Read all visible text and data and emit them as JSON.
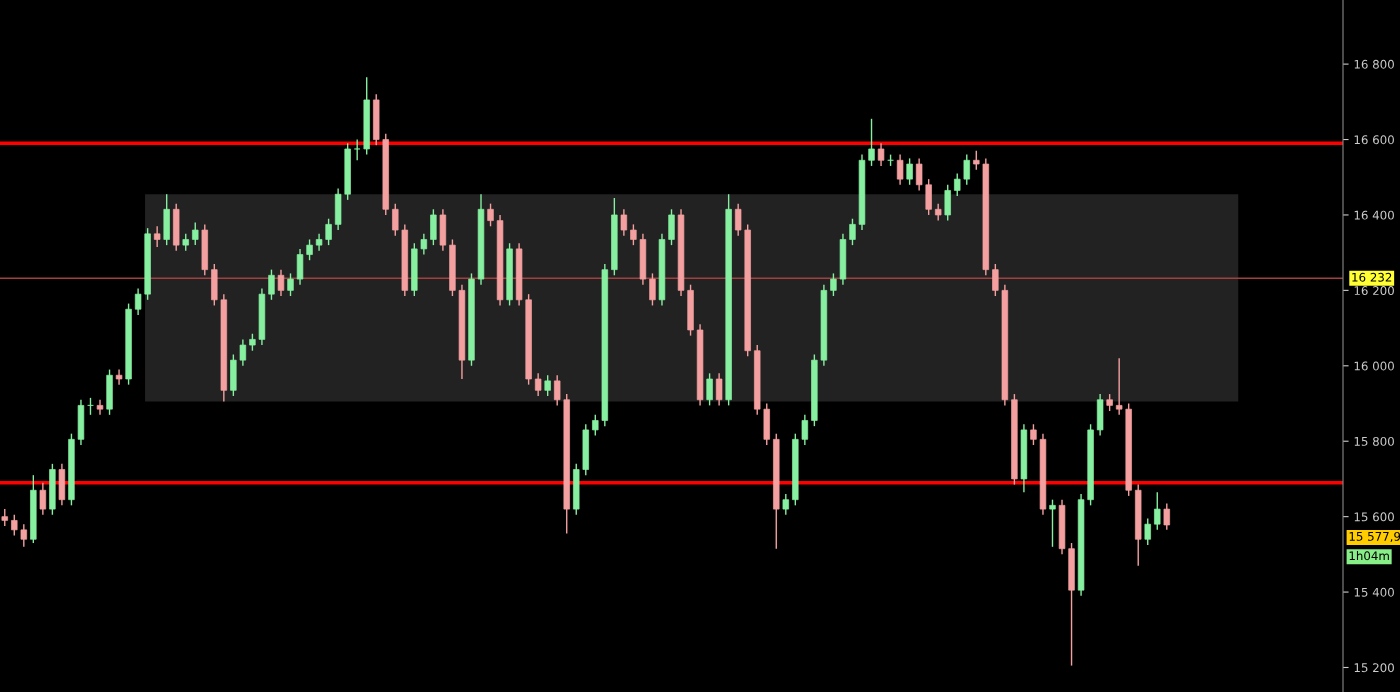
{
  "chart_data": {
    "type": "candlestick",
    "categories": [
      null,
      null,
      null,
      null,
      null,
      null,
      null,
      null,
      null,
      null,
      null,
      null,
      null,
      null,
      null,
      null,
      null,
      null,
      null,
      null,
      null,
      null,
      null,
      null,
      null,
      null,
      null,
      null,
      null,
      null,
      null,
      null,
      null,
      null,
      null,
      null,
      null,
      null,
      null,
      null,
      null,
      null,
      null,
      null,
      null,
      null,
      null,
      null,
      null,
      null,
      null,
      null,
      null,
      null,
      null,
      null,
      null,
      null,
      null,
      null,
      null,
      null,
      null,
      null,
      null,
      null,
      null,
      null,
      null,
      null,
      null,
      null,
      null,
      null,
      null,
      null,
      null,
      null,
      null,
      null,
      null,
      null,
      null,
      null,
      null,
      null,
      null,
      null,
      null,
      null,
      null,
      null,
      null,
      null,
      null,
      null,
      null,
      null,
      null,
      null,
      null,
      null,
      null,
      null,
      null,
      null,
      null,
      null,
      null,
      null,
      null,
      null,
      null,
      null,
      null,
      null,
      null,
      null,
      null,
      null,
      null,
      null,
      null,
      null,
      null,
      null,
      null,
      null,
      null,
      null,
      null,
      null,
      null,
      null,
      null,
      null,
      null,
      null,
      null,
      null,
      null
    ],
    "ohlc": [
      [
        15600,
        15620,
        15575,
        15590
      ],
      [
        15590,
        15605,
        15550,
        15565
      ],
      [
        15565,
        15580,
        15520,
        15540
      ],
      [
        15540,
        15710,
        15530,
        15670
      ],
      [
        15670,
        15690,
        15605,
        15620
      ],
      [
        15620,
        15740,
        15605,
        15725
      ],
      [
        15725,
        15740,
        15630,
        15645
      ],
      [
        15645,
        15820,
        15630,
        15805
      ],
      [
        15805,
        15910,
        15790,
        15895
      ],
      [
        15895,
        15915,
        15870,
        15895
      ],
      [
        15895,
        15910,
        15870,
        15885
      ],
      [
        15885,
        15990,
        15870,
        15975
      ],
      [
        15975,
        15990,
        15950,
        15965
      ],
      [
        15965,
        16165,
        15950,
        16150
      ],
      [
        16150,
        16205,
        16135,
        16190
      ],
      [
        16190,
        16365,
        16175,
        16350
      ],
      [
        16350,
        16370,
        16315,
        16335
      ],
      [
        16335,
        16455,
        16320,
        16415
      ],
      [
        16415,
        16430,
        16305,
        16320
      ],
      [
        16320,
        16350,
        16305,
        16335
      ],
      [
        16335,
        16380,
        16320,
        16360
      ],
      [
        16360,
        16375,
        16240,
        16255
      ],
      [
        16255,
        16270,
        16160,
        16175
      ],
      [
        16175,
        16190,
        15905,
        15935
      ],
      [
        15935,
        16030,
        15920,
        16015
      ],
      [
        16015,
        16070,
        16000,
        16055
      ],
      [
        16055,
        16085,
        16040,
        16070
      ],
      [
        16070,
        16205,
        16055,
        16190
      ],
      [
        16190,
        16255,
        16175,
        16240
      ],
      [
        16240,
        16255,
        16185,
        16200
      ],
      [
        16200,
        16245,
        16185,
        16230
      ],
      [
        16230,
        16310,
        16215,
        16295
      ],
      [
        16295,
        16335,
        16280,
        16320
      ],
      [
        16320,
        16350,
        16305,
        16335
      ],
      [
        16335,
        16390,
        16320,
        16375
      ],
      [
        16375,
        16470,
        16360,
        16455
      ],
      [
        16455,
        16590,
        16440,
        16575
      ],
      [
        16575,
        16600,
        16545,
        16575
      ],
      [
        16575,
        16765,
        16560,
        16705
      ],
      [
        16705,
        16720,
        16585,
        16600
      ],
      [
        16600,
        16615,
        16400,
        16415
      ],
      [
        16415,
        16430,
        16345,
        16360
      ],
      [
        16360,
        16375,
        16185,
        16200
      ],
      [
        16200,
        16325,
        16185,
        16310
      ],
      [
        16310,
        16350,
        16295,
        16335
      ],
      [
        16335,
        16415,
        16320,
        16400
      ],
      [
        16400,
        16415,
        16305,
        16320
      ],
      [
        16320,
        16335,
        16185,
        16200
      ],
      [
        16200,
        16215,
        15965,
        16015
      ],
      [
        16015,
        16245,
        16000,
        16230
      ],
      [
        16230,
        16455,
        16215,
        16415
      ],
      [
        16415,
        16430,
        16370,
        16385
      ],
      [
        16385,
        16400,
        16160,
        16175
      ],
      [
        16175,
        16325,
        16160,
        16310
      ],
      [
        16310,
        16325,
        16160,
        16175
      ],
      [
        16175,
        16190,
        15950,
        15965
      ],
      [
        15965,
        15980,
        15920,
        15935
      ],
      [
        15935,
        15975,
        15920,
        15960
      ],
      [
        15960,
        15975,
        15895,
        15910
      ],
      [
        15910,
        15925,
        15555,
        15620
      ],
      [
        15620,
        15740,
        15605,
        15725
      ],
      [
        15725,
        15845,
        15710,
        15830
      ],
      [
        15830,
        15870,
        15815,
        15855
      ],
      [
        15855,
        16270,
        15840,
        16255
      ],
      [
        16255,
        16445,
        16240,
        16400
      ],
      [
        16400,
        16415,
        16345,
        16360
      ],
      [
        16360,
        16375,
        16320,
        16335
      ],
      [
        16335,
        16350,
        16215,
        16230
      ],
      [
        16230,
        16245,
        16160,
        16175
      ],
      [
        16175,
        16350,
        16160,
        16335
      ],
      [
        16335,
        16415,
        16320,
        16400
      ],
      [
        16400,
        16415,
        16185,
        16200
      ],
      [
        16200,
        16215,
        16080,
        16095
      ],
      [
        16095,
        16110,
        15895,
        15910
      ],
      [
        15910,
        15980,
        15895,
        15965
      ],
      [
        15965,
        15980,
        15895,
        15910
      ],
      [
        15910,
        16455,
        15895,
        16415
      ],
      [
        16415,
        16430,
        16345,
        16360
      ],
      [
        16360,
        16375,
        16025,
        16040
      ],
      [
        16040,
        16055,
        15870,
        15885
      ],
      [
        15885,
        15900,
        15790,
        15805
      ],
      [
        15805,
        15820,
        15515,
        15620
      ],
      [
        15620,
        15660,
        15605,
        15645
      ],
      [
        15645,
        15820,
        15630,
        15805
      ],
      [
        15805,
        15870,
        15790,
        15855
      ],
      [
        15855,
        16030,
        15840,
        16015
      ],
      [
        16015,
        16215,
        16000,
        16200
      ],
      [
        16200,
        16245,
        16185,
        16230
      ],
      [
        16230,
        16350,
        16215,
        16335
      ],
      [
        16335,
        16390,
        16320,
        16375
      ],
      [
        16375,
        16560,
        16360,
        16545
      ],
      [
        16545,
        16655,
        16530,
        16575
      ],
      [
        16575,
        16590,
        16530,
        16545
      ],
      [
        16545,
        16560,
        16530,
        16545
      ],
      [
        16545,
        16560,
        16480,
        16495
      ],
      [
        16495,
        16550,
        16480,
        16535
      ],
      [
        16535,
        16550,
        16465,
        16480
      ],
      [
        16480,
        16495,
        16400,
        16415
      ],
      [
        16415,
        16430,
        16385,
        16400
      ],
      [
        16400,
        16480,
        16385,
        16465
      ],
      [
        16465,
        16510,
        16450,
        16495
      ],
      [
        16495,
        16560,
        16480,
        16545
      ],
      [
        16545,
        16570,
        16520,
        16535
      ],
      [
        16535,
        16550,
        16240,
        16255
      ],
      [
        16255,
        16270,
        16185,
        16200
      ],
      [
        16200,
        16215,
        15895,
        15910
      ],
      [
        15910,
        15925,
        15685,
        15700
      ],
      [
        15700,
        15845,
        15665,
        15830
      ],
      [
        15830,
        15845,
        15790,
        15805
      ],
      [
        15805,
        15820,
        15605,
        15620
      ],
      [
        15620,
        15645,
        15520,
        15630
      ],
      [
        15630,
        15645,
        15500,
        15515
      ],
      [
        15515,
        15530,
        15205,
        15405
      ],
      [
        15405,
        15660,
        15390,
        15645
      ],
      [
        15645,
        15845,
        15630,
        15830
      ],
      [
        15830,
        15925,
        15815,
        15910
      ],
      [
        15910,
        15925,
        15880,
        15895
      ],
      [
        15895,
        16020,
        15870,
        15885
      ],
      [
        15885,
        15900,
        15655,
        15670
      ],
      [
        15670,
        15685,
        15470,
        15540
      ],
      [
        15540,
        15595,
        15525,
        15580
      ],
      [
        15580,
        15665,
        15565,
        15620
      ],
      [
        15620,
        15635,
        15565,
        15577.9
      ],
      null,
      null,
      null,
      null,
      null,
      null,
      null,
      null,
      null,
      null,
      null,
      null,
      null,
      null,
      null,
      null,
      null,
      null
    ],
    "colors": [
      "#f4a0a0",
      "#f4a0a0",
      "#f4a0a0",
      "#86efa0",
      "#f4a0a0",
      "#86efa0",
      "#f4a0a0",
      "#86efa0",
      "#86efa0",
      "#86efa0",
      "#f4a0a0",
      "#86efa0",
      "#f4a0a0",
      "#86efa0",
      "#86efa0",
      "#86efa0",
      "#f4a0a0",
      "#86efa0",
      "#f4a0a0",
      "#86efa0",
      "#86efa0",
      "#f4a0a0",
      "#f4a0a0",
      "#f4a0a0",
      "#86efa0",
      "#86efa0",
      "#86efa0",
      "#86efa0",
      "#86efa0",
      "#f4a0a0",
      "#86efa0",
      "#86efa0",
      "#86efa0",
      "#86efa0",
      "#86efa0",
      "#86efa0",
      "#86efa0",
      "#86efa0",
      "#86efa0",
      "#f4a0a0",
      "#f4a0a0",
      "#f4a0a0",
      "#f4a0a0",
      "#86efa0",
      "#86efa0",
      "#86efa0",
      "#f4a0a0",
      "#f4a0a0",
      "#f4a0a0",
      "#86efa0",
      "#86efa0",
      "#f4a0a0",
      "#f4a0a0",
      "#86efa0",
      "#f4a0a0",
      "#f4a0a0",
      "#f4a0a0",
      "#86efa0",
      "#f4a0a0",
      "#f4a0a0",
      "#86efa0",
      "#86efa0",
      "#86efa0",
      "#86efa0",
      "#86efa0",
      "#f4a0a0",
      "#f4a0a0",
      "#f4a0a0",
      "#f4a0a0",
      "#86efa0",
      "#86efa0",
      "#f4a0a0",
      "#f4a0a0",
      "#f4a0a0",
      "#86efa0",
      "#f4a0a0",
      "#86efa0",
      "#f4a0a0",
      "#f4a0a0",
      "#f4a0a0",
      "#f4a0a0",
      "#f4a0a0",
      "#86efa0",
      "#86efa0",
      "#86efa0",
      "#86efa0",
      "#86efa0",
      "#86efa0",
      "#86efa0",
      "#86efa0",
      "#86efa0",
      "#86efa0",
      "#f4a0a0",
      "#86efa0",
      "#f4a0a0",
      "#86efa0",
      "#f4a0a0",
      "#f4a0a0",
      "#f4a0a0",
      "#86efa0",
      "#86efa0",
      "#86efa0",
      "#f4a0a0",
      "#f4a0a0",
      "#f4a0a0",
      "#f4a0a0",
      "#f4a0a0",
      "#86efa0",
      "#f4a0a0",
      "#f4a0a0",
      "#86efa0",
      "#f4a0a0",
      "#f4a0a0",
      "#86efa0",
      "#86efa0",
      "#86efa0",
      "#f4a0a0",
      "#f4a0a0",
      "#f4a0a0",
      "#f4a0a0",
      "#86efa0",
      "#86efa0",
      "#f4a0a0",
      null,
      null,
      null,
      null,
      null,
      null,
      null,
      null,
      null,
      null,
      null,
      null,
      null,
      null,
      null,
      null,
      null,
      null
    ],
    "ylim": [
      15135,
      16970
    ],
    "yticks": [
      {
        "value": 15200,
        "label": "15 200"
      },
      {
        "value": 15400,
        "label": "15 400"
      },
      {
        "value": 15600,
        "label": "15 600"
      },
      {
        "value": 15800,
        "label": "15 800"
      },
      {
        "value": 16000,
        "label": "16 000"
      },
      {
        "value": 16200,
        "label": "16 200"
      },
      {
        "value": 16400,
        "label": "16 400"
      },
      {
        "value": 16600,
        "label": "16 600"
      },
      {
        "value": 16800,
        "label": "16 800"
      }
    ],
    "tick_labels": "y",
    "grid": false,
    "ref_lines": [
      {
        "axis": "y",
        "value": 16590,
        "color": "#ff0000"
      },
      {
        "axis": "y",
        "value": 15690,
        "color": "#ff0000"
      },
      {
        "axis": "y",
        "value": 16232,
        "label": "16 232",
        "color": "#a04040"
      }
    ],
    "bands": [
      {
        "axis": "y",
        "from": 15905,
        "to": 16455,
        "color": "#222222"
      }
    ],
    "annotations": [
      "15 577,9",
      "1h04m"
    ]
  }
}
